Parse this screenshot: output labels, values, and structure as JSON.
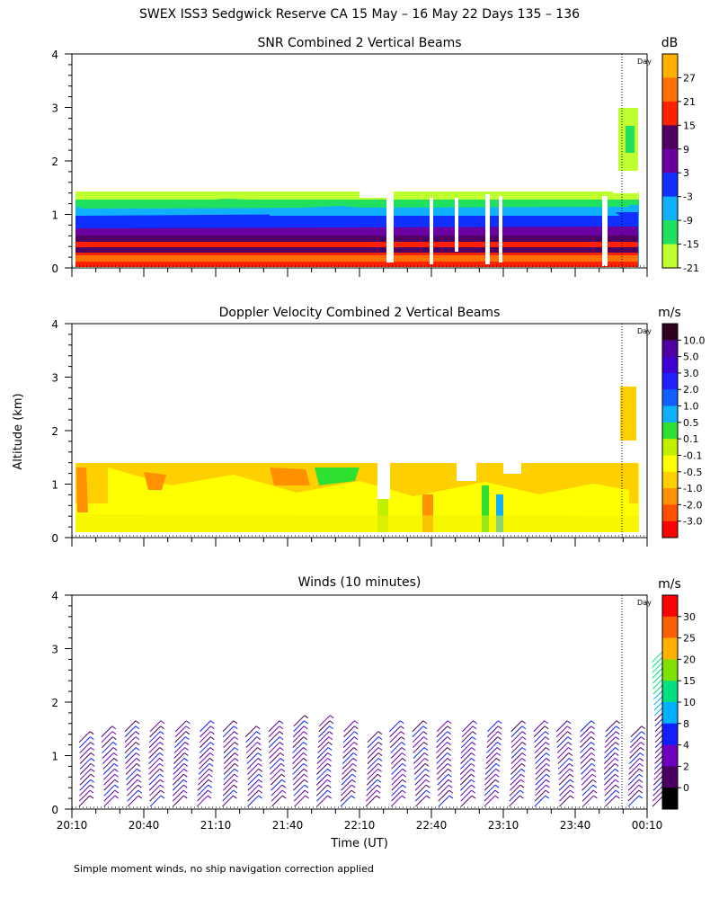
{
  "figure": {
    "title": "SWEX ISS3 Sedgwick Reserve CA  15 May – 16 May 22 Days 135 – 136",
    "ylabel": "Altitude (km)",
    "xlabel": "Time (UT)",
    "footnote": "Simple moment winds, no ship navigation correction applied",
    "day_marker_label": "Day",
    "x_ticks": [
      "20:10",
      "20:40",
      "21:10",
      "21:40",
      "22:10",
      "22:40",
      "23:10",
      "23:40",
      "00:10"
    ],
    "y_ticks": [
      "0",
      "1",
      "2",
      "3",
      "4"
    ]
  },
  "chart_data": [
    {
      "type": "heatmap",
      "title": "SNR Combined 2 Vertical Beams",
      "units": "dB",
      "y_range_km": [
        0,
        4
      ],
      "x_range": [
        "20:10",
        "00:10"
      ],
      "colorbar": {
        "labels": [
          "27",
          "21",
          "15",
          "9",
          "3",
          "-3",
          "-9",
          "-15",
          "-21"
        ],
        "colors": [
          "#ffb000",
          "#ff7000",
          "#ff2000",
          "#500060",
          "#6a00a0",
          "#1030ff",
          "#10b0ff",
          "#20e060",
          "#c0ff30"
        ]
      },
      "description_values": {
        "echo_top_km": 1.4,
        "strongest_layer_km": [
          0.0,
          0.3
        ],
        "upper_echo_after_day_boundary_km": [
          1.9,
          2.8
        ]
      }
    },
    {
      "type": "heatmap",
      "title": "Doppler Velocity Combined 2 Vertical Beams",
      "units": "m/s",
      "y_range_km": [
        0,
        4
      ],
      "x_range": [
        "20:10",
        "00:10"
      ],
      "colorbar": {
        "labels": [
          "10.0",
          "5.0",
          "3.0",
          "2.0",
          "1.0",
          "0.5",
          "0.1",
          "-0.1",
          "-0.5",
          "-1.0",
          "-2.0",
          "-3.0"
        ],
        "colors": [
          "#300020",
          "#5000a0",
          "#4000d0",
          "#2020ff",
          "#1060ff",
          "#10b0ff",
          "#30e030",
          "#c0f000",
          "#ffff00",
          "#ffd000",
          "#ff9000",
          "#ff5000",
          "#ff0000"
        ]
      },
      "description_values": {
        "echo_top_km": 1.4,
        "dominant_range_mps": [
          -0.5,
          -0.1
        ]
      }
    },
    {
      "type": "scatter",
      "title": "Winds (10 minutes)",
      "units": "m/s",
      "y_range_km": [
        0,
        4
      ],
      "x_range": [
        "20:10",
        "00:10"
      ],
      "colorbar": {
        "labels": [
          "30",
          "25",
          "20",
          "15",
          "10",
          "8",
          "4",
          "2",
          "0"
        ],
        "colors": [
          "#ff0000",
          "#ff6000",
          "#ffb000",
          "#80e000",
          "#00e080",
          "#00b0ff",
          "#1020ff",
          "#7000c0",
          "#4a0060",
          "#000000"
        ]
      },
      "profiles_x_minutes_after_2010": [
        5,
        15,
        25,
        35,
        45,
        55,
        65,
        75,
        85,
        95,
        105,
        115,
        125,
        135,
        145,
        155,
        165,
        175,
        185,
        195,
        205,
        215,
        225,
        235,
        245
      ],
      "profile_top_km": [
        1.45,
        1.5,
        1.6,
        1.6,
        1.6,
        1.6,
        1.6,
        1.55,
        1.6,
        1.7,
        1.7,
        1.65,
        1.4,
        1.6,
        1.6,
        1.6,
        1.6,
        1.6,
        1.6,
        1.6,
        1.6,
        1.65,
        1.6,
        1.5,
        2.95
      ]
    }
  ]
}
